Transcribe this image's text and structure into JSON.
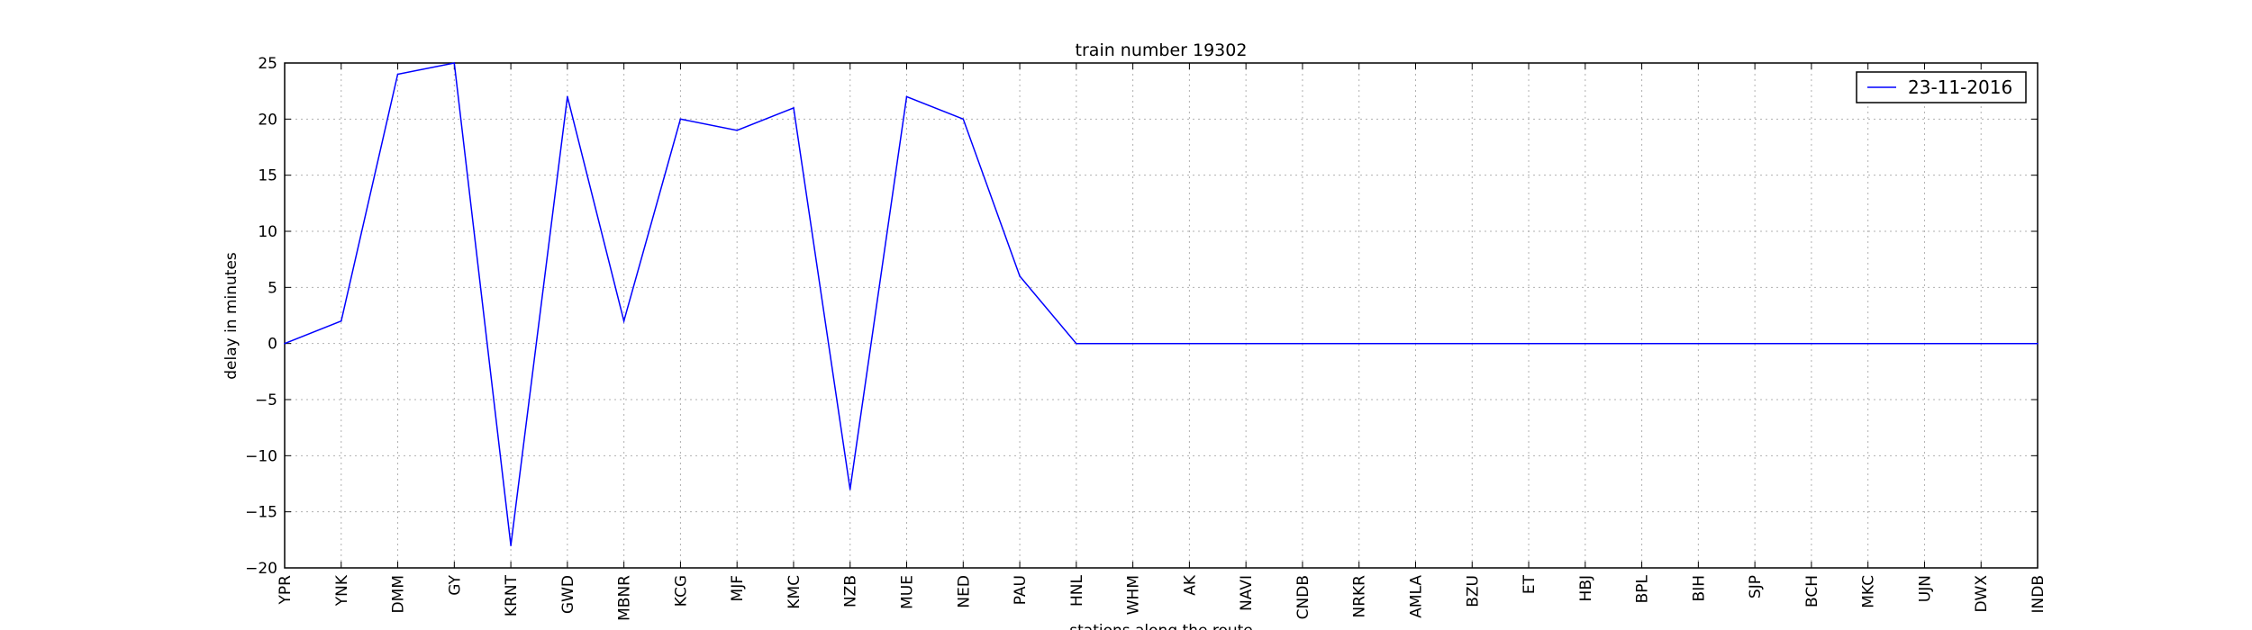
{
  "chart_data": {
    "type": "line",
    "title": "train number 19302",
    "xlabel": "stations along the route",
    "ylabel": "delay in minutes",
    "categories": [
      "YPR",
      "YNK",
      "DMM",
      "GY",
      "KRNT",
      "GWD",
      "MBNR",
      "KCG",
      "MJF",
      "KMC",
      "NZB",
      "MUE",
      "NED",
      "PAU",
      "HNL",
      "WHM",
      "AK",
      "NAVI",
      "CNDB",
      "NRKR",
      "AMLA",
      "BZU",
      "ET",
      "HBJ",
      "BPL",
      "BIH",
      "SJP",
      "BCH",
      "MKC",
      "UJN",
      "DWX",
      "INDB"
    ],
    "series": [
      {
        "name": "23-11-2016",
        "color": "#0000ff",
        "values": [
          0,
          2,
          24,
          25,
          -18,
          22,
          2,
          20,
          19,
          21,
          -13,
          22,
          20,
          6,
          0,
          0,
          0,
          0,
          0,
          0,
          0,
          0,
          0,
          0,
          0,
          0,
          0,
          0,
          0,
          0,
          0,
          0
        ]
      }
    ],
    "ylim": [
      -20,
      25
    ],
    "yticks": [
      -20,
      -15,
      -10,
      -5,
      0,
      5,
      10,
      15,
      20,
      25
    ],
    "ytick_labels": [
      "−20",
      "−15",
      "−10",
      "−5",
      "0",
      "5",
      "10",
      "15",
      "20",
      "25"
    ],
    "grid": true,
    "legend_position": "upper right"
  }
}
